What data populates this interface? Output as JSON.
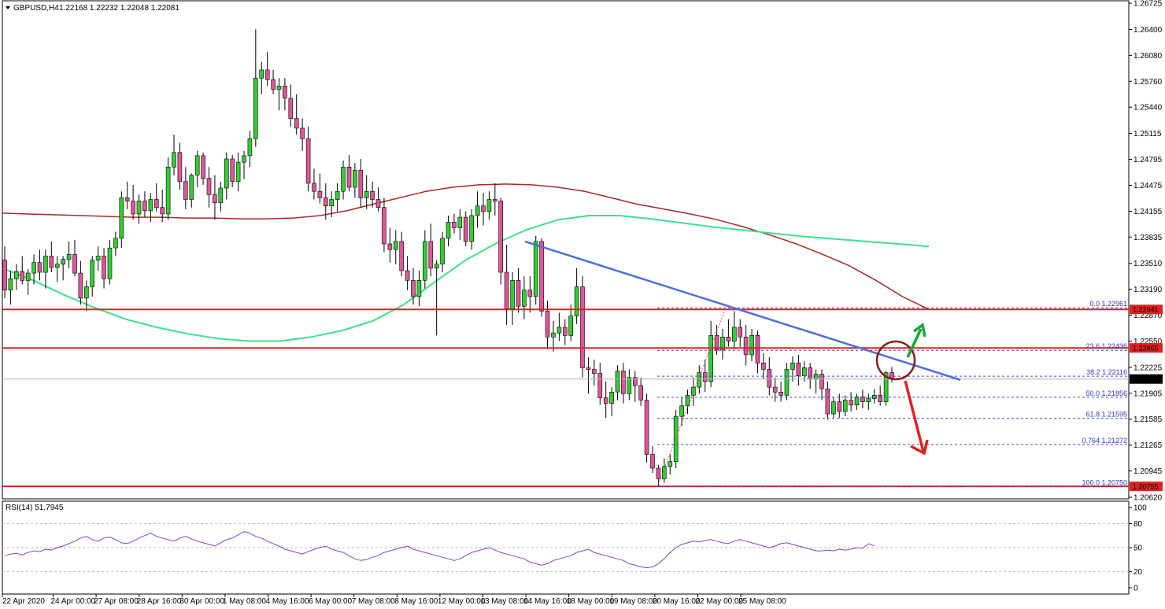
{
  "header": {
    "symbol": "GBPUSD,H4",
    "ohlc": "1.22168 1.22232 1.22048 1.22081"
  },
  "colors": {
    "up": "#32cd32",
    "down": "#e0559a",
    "ma_red": "#a52a2a",
    "ma_green": "#3ee08a",
    "trendline": "#4b6fd6",
    "hline": "#e02020",
    "fib": "#3b4fc4",
    "rsi": "#8a3fc0",
    "circle": "#8b1a1a",
    "arrow_up": "#1aa53a",
    "arrow_down": "#e02020"
  },
  "chart_data": {
    "type": "candlestick",
    "price_axis": {
      "range": [
        1.2062,
        1.26725
      ],
      "ticks": [
        "1.26725",
        "1.26400",
        "1.26080",
        "1.25760",
        "1.25440",
        "1.25115",
        "1.24795",
        "1.24475",
        "1.24155",
        "1.23835",
        "1.23510",
        "1.23190",
        "1.22870",
        "1.22550",
        "1.22225",
        "1.21905",
        "1.21585",
        "1.21265",
        "1.20945",
        "1.20620"
      ]
    },
    "time_axis": {
      "labels": [
        "22 Apr 2020",
        "24 Apr 00:00",
        "27 Apr 08:00",
        "28 Apr 16:00",
        "30 Apr 00:00",
        "1 May 08:00",
        "4 May 16:00",
        "6 May 00:00",
        "7 May 08:00",
        "8 May 16:00",
        "12 May 00:00",
        "13 May 08:00",
        "14 May 16:00",
        "18 May 00:00",
        "19 May 08:00",
        "20 May 16:00",
        "22 May 00:00",
        "25 May 08:00"
      ]
    },
    "horizontal_levels": [
      {
        "label": "1.22941",
        "price": 1.22941
      },
      {
        "label": "1.22465",
        "price": 1.22465
      },
      {
        "label": "1.20755",
        "price": 1.20755
      }
    ],
    "current_price": {
      "label": "1.22081",
      "price": 1.22081
    },
    "fibonacci": [
      {
        "label": "0.0 1.22961",
        "price": 1.22961
      },
      {
        "label": "23.6 1.22436",
        "price": 1.22436
      },
      {
        "label": "38.2 1.22116",
        "price": 1.22116
      },
      {
        "label": "50.0 1.21856",
        "price": 1.21856
      },
      {
        "label": "61.8 1.21595",
        "price": 1.21595
      },
      {
        "label": "0.764 1.21272",
        "price": 1.21272
      },
      {
        "label": "100.0 1.20750",
        "price": 1.2075
      }
    ],
    "trendline": {
      "from_price": 1.2378,
      "to_price": 1.2207
    },
    "ma_red": [
      1.2413,
      1.2412,
      1.2411,
      1.241,
      1.2409,
      1.2408,
      1.2408,
      1.2407,
      1.2407,
      1.2406,
      1.2406,
      1.2407,
      1.241,
      1.2416,
      1.2424,
      1.2432,
      1.244,
      1.2445,
      1.2448,
      1.2449,
      1.2448,
      1.2445,
      1.244,
      1.2432,
      1.2424,
      1.2418,
      1.2412,
      1.2405,
      1.2396,
      1.2386,
      1.2375,
      1.2362,
      1.2348,
      1.233,
      1.231,
      1.2294
    ],
    "ma_green": [
      1.2345,
      1.233,
      1.2312,
      1.2296,
      1.2282,
      1.2272,
      1.2264,
      1.2258,
      1.2255,
      1.2255,
      1.226,
      1.2268,
      1.228,
      1.23,
      1.2328,
      1.2355,
      1.2376,
      1.2393,
      1.2405,
      1.241,
      1.241,
      1.2406,
      1.2401,
      1.2396,
      1.2392,
      1.2388,
      1.2384,
      1.2381,
      1.2378,
      1.2375,
      1.2372
    ],
    "candles": [
      [
        1.2355,
        1.2372,
        1.2308,
        1.2318
      ],
      [
        1.2318,
        1.2342,
        1.23,
        1.2332
      ],
      [
        1.2332,
        1.235,
        1.2318,
        1.2341
      ],
      [
        1.2341,
        1.236,
        1.2325,
        1.233
      ],
      [
        1.233,
        1.2344,
        1.2312,
        1.2339
      ],
      [
        1.2339,
        1.2362,
        1.2325,
        1.2352
      ],
      [
        1.2352,
        1.2368,
        1.233,
        1.234
      ],
      [
        1.234,
        1.2368,
        1.232,
        1.236
      ],
      [
        1.236,
        1.2378,
        1.234,
        1.2346
      ],
      [
        1.2346,
        1.236,
        1.2328,
        1.235
      ],
      [
        1.235,
        1.236,
        1.233,
        1.2356
      ],
      [
        1.2356,
        1.2378,
        1.2345,
        1.2362
      ],
      [
        1.2362,
        1.238,
        1.2335,
        1.2339
      ],
      [
        1.2339,
        1.2354,
        1.23,
        1.2308
      ],
      [
        1.2308,
        1.233,
        1.2292,
        1.2322
      ],
      [
        1.2322,
        1.236,
        1.231,
        1.2355
      ],
      [
        1.2355,
        1.2372,
        1.2342,
        1.236
      ],
      [
        1.236,
        1.237,
        1.232,
        1.2332
      ],
      [
        1.2332,
        1.238,
        1.2325,
        1.237
      ],
      [
        1.237,
        1.239,
        1.236,
        1.2382
      ],
      [
        1.2382,
        1.244,
        1.237,
        1.2432
      ],
      [
        1.2432,
        1.2452,
        1.2418,
        1.2428
      ],
      [
        1.2428,
        1.2448,
        1.2405,
        1.2412
      ],
      [
        1.2412,
        1.2436,
        1.24,
        1.2428
      ],
      [
        1.2428,
        1.244,
        1.2408,
        1.2416
      ],
      [
        1.2416,
        1.2438,
        1.2402,
        1.243
      ],
      [
        1.243,
        1.245,
        1.2415,
        1.242
      ],
      [
        1.242,
        1.2442,
        1.2402,
        1.2412
      ],
      [
        1.2412,
        1.2482,
        1.2405,
        1.247
      ],
      [
        1.247,
        1.251,
        1.246,
        1.2488
      ],
      [
        1.2488,
        1.25,
        1.2442,
        1.2452
      ],
      [
        1.2452,
        1.247,
        1.2418,
        1.243
      ],
      [
        1.243,
        1.2462,
        1.242,
        1.246
      ],
      [
        1.246,
        1.249,
        1.2445,
        1.2484
      ],
      [
        1.2484,
        1.2488,
        1.2448,
        1.2456
      ],
      [
        1.2456,
        1.247,
        1.242,
        1.2436
      ],
      [
        1.2436,
        1.246,
        1.2405,
        1.2426
      ],
      [
        1.2426,
        1.2452,
        1.2415,
        1.2444
      ],
      [
        1.2444,
        1.2488,
        1.243,
        1.248
      ],
      [
        1.248,
        1.2485,
        1.2445,
        1.2452
      ],
      [
        1.2452,
        1.2488,
        1.244,
        1.2476
      ],
      [
        1.2476,
        1.249,
        1.2455,
        1.2484
      ],
      [
        1.2484,
        1.2515,
        1.247,
        1.2505
      ],
      [
        1.2505,
        1.264,
        1.2495,
        1.258
      ],
      [
        1.258,
        1.26,
        1.256,
        1.259
      ],
      [
        1.259,
        1.2612,
        1.257,
        1.2578
      ],
      [
        1.2578,
        1.259,
        1.256,
        1.2566
      ],
      [
        1.2566,
        1.258,
        1.254,
        1.257
      ],
      [
        1.257,
        1.258,
        1.254,
        1.2555
      ],
      [
        1.2555,
        1.2572,
        1.252,
        1.253
      ],
      [
        1.253,
        1.256,
        1.251,
        1.2518
      ],
      [
        1.2518,
        1.253,
        1.249,
        1.2505
      ],
      [
        1.2505,
        1.252,
        1.244,
        1.245
      ],
      [
        1.245,
        1.2468,
        1.243,
        1.244
      ],
      [
        1.244,
        1.2462,
        1.2425,
        1.2432
      ],
      [
        1.2432,
        1.245,
        1.2405,
        1.2422
      ],
      [
        1.2422,
        1.244,
        1.2408,
        1.243
      ],
      [
        1.243,
        1.245,
        1.2415,
        1.244
      ],
      [
        1.244,
        1.2478,
        1.243,
        1.247
      ],
      [
        1.247,
        1.2485,
        1.244,
        1.2445
      ],
      [
        1.2445,
        1.2475,
        1.2432,
        1.2466
      ],
      [
        1.2466,
        1.248,
        1.242,
        1.2432
      ],
      [
        1.2432,
        1.246,
        1.2418,
        1.244
      ],
      [
        1.244,
        1.2452,
        1.242,
        1.243
      ],
      [
        1.243,
        1.2445,
        1.2415,
        1.242
      ],
      [
        1.242,
        1.2432,
        1.2365,
        1.2375
      ],
      [
        1.2375,
        1.2395,
        1.2352,
        1.2368
      ],
      [
        1.2368,
        1.2392,
        1.235,
        1.2378
      ],
      [
        1.2378,
        1.239,
        1.2335,
        1.2342
      ],
      [
        1.2342,
        1.236,
        1.2318,
        1.233
      ],
      [
        1.233,
        1.2345,
        1.23,
        1.231
      ],
      [
        1.231,
        1.2342,
        1.2298,
        1.233
      ],
      [
        1.233,
        1.2392,
        1.232,
        1.2378
      ],
      [
        1.2378,
        1.24,
        1.2335,
        1.2345
      ],
      [
        1.2345,
        1.2355,
        1.2262,
        1.235
      ],
      [
        1.235,
        1.239,
        1.234,
        1.2382
      ],
      [
        1.2382,
        1.241,
        1.2372,
        1.2402
      ],
      [
        1.2402,
        1.2412,
        1.2388,
        1.2395
      ],
      [
        1.2395,
        1.2418,
        1.238,
        1.2408
      ],
      [
        1.2408,
        1.2415,
        1.2372,
        1.2378
      ],
      [
        1.2378,
        1.2418,
        1.2368,
        1.241
      ],
      [
        1.241,
        1.244,
        1.2395,
        1.2422
      ],
      [
        1.2422,
        1.2438,
        1.2398,
        1.2415
      ],
      [
        1.2415,
        1.244,
        1.2405,
        1.243
      ],
      [
        1.243,
        1.245,
        1.241,
        1.2428
      ],
      [
        1.2428,
        1.2432,
        1.2325,
        1.234
      ],
      [
        1.234,
        1.2374,
        1.2275,
        1.2295
      ],
      [
        1.2295,
        1.234,
        1.2275,
        1.233
      ],
      [
        1.233,
        1.2345,
        1.229,
        1.2298
      ],
      [
        1.2298,
        1.2335,
        1.2282,
        1.2318
      ],
      [
        1.2318,
        1.2335,
        1.229,
        1.231
      ],
      [
        1.231,
        1.2385,
        1.23,
        1.2378
      ],
      [
        1.2378,
        1.2382,
        1.2285,
        1.2292
      ],
      [
        1.2292,
        1.2305,
        1.2245,
        1.226
      ],
      [
        1.226,
        1.228,
        1.2242,
        1.2265
      ],
      [
        1.2265,
        1.229,
        1.2255,
        1.2272
      ],
      [
        1.2272,
        1.2282,
        1.225,
        1.2262
      ],
      [
        1.2262,
        1.23,
        1.2255,
        1.2286
      ],
      [
        1.2286,
        1.2345,
        1.2276,
        1.2322
      ],
      [
        1.2322,
        1.2335,
        1.221,
        1.2222
      ],
      [
        1.2222,
        1.2235,
        1.219,
        1.222
      ],
      [
        1.222,
        1.2232,
        1.22,
        1.2215
      ],
      [
        1.2215,
        1.2228,
        1.2176,
        1.2185
      ],
      [
        1.2185,
        1.2205,
        1.216,
        1.2178
      ],
      [
        1.2178,
        1.2198,
        1.2162,
        1.2192
      ],
      [
        1.2192,
        1.2225,
        1.2182,
        1.2218
      ],
      [
        1.2218,
        1.2228,
        1.2178,
        1.219
      ],
      [
        1.219,
        1.222,
        1.2182,
        1.221
      ],
      [
        1.221,
        1.2218,
        1.218,
        1.22
      ],
      [
        1.22,
        1.221,
        1.2175,
        1.2182
      ],
      [
        1.2182,
        1.219,
        1.2105,
        1.2115
      ],
      [
        1.2115,
        1.2125,
        1.2092,
        1.2098
      ],
      [
        1.2098,
        1.2102,
        1.2075,
        1.2085
      ],
      [
        1.2085,
        1.211,
        1.208,
        1.21
      ],
      [
        1.21,
        1.2115,
        1.209,
        1.2106
      ],
      [
        1.2106,
        1.217,
        1.2098,
        1.2162
      ],
      [
        1.2162,
        1.2185,
        1.215,
        1.2175
      ],
      [
        1.2175,
        1.2195,
        1.2165,
        1.2188
      ],
      [
        1.2188,
        1.221,
        1.2175,
        1.2198
      ],
      [
        1.2198,
        1.2225,
        1.219,
        1.2216
      ],
      [
        1.2216,
        1.2232,
        1.2192,
        1.2205
      ],
      [
        1.2205,
        1.228,
        1.2198,
        1.2262
      ],
      [
        1.2262,
        1.2275,
        1.2238,
        1.2244
      ],
      [
        1.2244,
        1.227,
        1.2232,
        1.226
      ],
      [
        1.226,
        1.2282,
        1.2248,
        1.2255
      ],
      [
        1.2255,
        1.2292,
        1.2245,
        1.2272
      ],
      [
        1.2272,
        1.2282,
        1.2248,
        1.226
      ],
      [
        1.226,
        1.2275,
        1.2225,
        1.2238
      ],
      [
        1.2238,
        1.227,
        1.223,
        1.2262
      ],
      [
        1.2262,
        1.2268,
        1.2215,
        1.2228
      ],
      [
        1.2228,
        1.224,
        1.2208,
        1.222
      ],
      [
        1.222,
        1.2235,
        1.2188,
        1.2198
      ],
      [
        1.2198,
        1.221,
        1.218,
        1.2192
      ],
      [
        1.2192,
        1.2205,
        1.218,
        1.2188
      ],
      [
        1.2188,
        1.2228,
        1.2182,
        1.222
      ],
      [
        1.222,
        1.2236,
        1.2205,
        1.2228
      ],
      [
        1.2228,
        1.2238,
        1.22,
        1.2212
      ],
      [
        1.2212,
        1.223,
        1.2205,
        1.2222
      ],
      [
        1.2222,
        1.2228,
        1.2196,
        1.2208
      ],
      [
        1.2208,
        1.222,
        1.219,
        1.2214
      ],
      [
        1.2214,
        1.222,
        1.2182,
        1.2196
      ],
      [
        1.2196,
        1.2205,
        1.2158,
        1.2165
      ],
      [
        1.2165,
        1.2185,
        1.216,
        1.218
      ],
      [
        1.218,
        1.219,
        1.216,
        1.2168
      ],
      [
        1.2168,
        1.2188,
        1.2162,
        1.2182
      ],
      [
        1.2182,
        1.2192,
        1.2168,
        1.2176
      ],
      [
        1.2176,
        1.219,
        1.217,
        1.2186
      ],
      [
        1.2186,
        1.2195,
        1.2172,
        1.218
      ],
      [
        1.218,
        1.219,
        1.217,
        1.2184
      ],
      [
        1.2184,
        1.2196,
        1.2178,
        1.2188
      ],
      [
        1.2188,
        1.22,
        1.2175,
        1.218
      ],
      [
        1.218,
        1.2218,
        1.2175,
        1.2216
      ],
      [
        1.2216,
        1.2223,
        1.2204,
        1.2208
      ]
    ],
    "rsi": {
      "label": "RSI(14) 51.7945",
      "range": [
        0,
        100
      ],
      "ticks": [
        "100",
        "80",
        "50",
        "20",
        "0"
      ],
      "values": [
        40,
        42,
        43,
        41,
        44,
        46,
        45,
        48,
        47,
        50,
        52,
        55,
        58,
        62,
        64,
        60,
        58,
        62,
        63,
        60,
        56,
        55,
        58,
        62,
        65,
        68,
        64,
        62,
        60,
        58,
        62,
        64,
        61,
        58,
        56,
        54,
        52,
        56,
        60,
        62,
        66,
        70,
        68,
        64,
        62,
        58,
        55,
        52,
        48,
        46,
        44,
        42,
        45,
        48,
        50,
        52,
        48,
        46,
        44,
        40,
        36,
        34,
        35,
        38,
        40,
        44,
        46,
        48,
        50,
        52,
        48,
        46,
        44,
        42,
        40,
        38,
        36,
        34,
        36,
        40,
        44,
        46,
        48,
        50,
        47,
        44,
        42,
        40,
        38,
        36,
        32,
        30,
        28,
        30,
        34,
        36,
        38,
        40,
        44,
        46,
        48,
        44,
        42,
        40,
        38,
        36,
        34,
        30,
        28,
        26,
        25,
        26,
        30,
        36,
        44,
        50,
        54,
        56,
        58,
        57,
        59,
        60,
        58,
        56,
        55,
        58,
        60,
        58,
        56,
        54,
        52,
        50,
        52,
        55,
        56,
        54,
        52,
        50,
        48,
        46,
        46,
        47,
        46,
        48,
        47,
        48,
        50,
        49,
        55,
        52
      ]
    }
  }
}
